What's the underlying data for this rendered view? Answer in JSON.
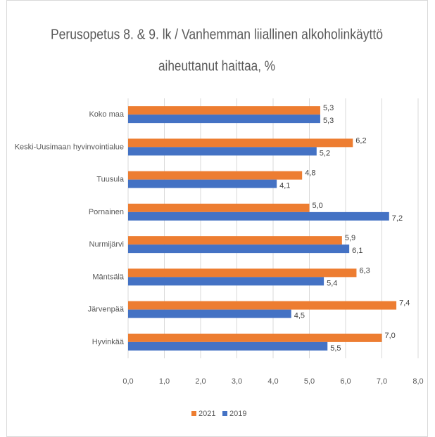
{
  "chart_data": {
    "type": "hbar",
    "title": [
      "Perusopetus 8. & 9. lk / Vanhemman liiallinen alkoholinkäyttö",
      "aiheuttanut haittaa, %"
    ],
    "categories": [
      "Koko maa",
      "Keski-Uusimaan hyvinvointialue",
      "Tuusula",
      "Pornainen",
      "Nurmijärvi",
      "Mäntsälä",
      "Järvenpää",
      "Hyvinkää"
    ],
    "series": [
      {
        "name": "2021",
        "color": "#ed7d31",
        "values": [
          5.3,
          6.2,
          4.8,
          5.0,
          5.9,
          6.3,
          7.4,
          7.0
        ],
        "value_labels": [
          "5,3",
          "6,2",
          "4,8",
          "5,0",
          "5,9",
          "6,3",
          "7,4",
          "7,0"
        ]
      },
      {
        "name": "2019",
        "color": "#4472c4",
        "values": [
          5.3,
          5.2,
          4.1,
          7.2,
          6.1,
          5.4,
          4.5,
          5.5
        ],
        "value_labels": [
          "5,3",
          "5,2",
          "4,1",
          "7,2",
          "6,1",
          "5,4",
          "4,5",
          "5,5"
        ]
      }
    ],
    "xlim": [
      0,
      8
    ],
    "xticks": [
      {
        "value": 0,
        "label": "0,0"
      },
      {
        "value": 1,
        "label": "1,0"
      },
      {
        "value": 2,
        "label": "2,0"
      },
      {
        "value": 3,
        "label": "3,0"
      },
      {
        "value": 4,
        "label": "4,0"
      },
      {
        "value": 5,
        "label": "5,0"
      },
      {
        "value": 6,
        "label": "6,0"
      },
      {
        "value": 7,
        "label": "7,0"
      },
      {
        "value": 8,
        "label": "8,0"
      }
    ],
    "grid": true,
    "legend": "bottom"
  }
}
